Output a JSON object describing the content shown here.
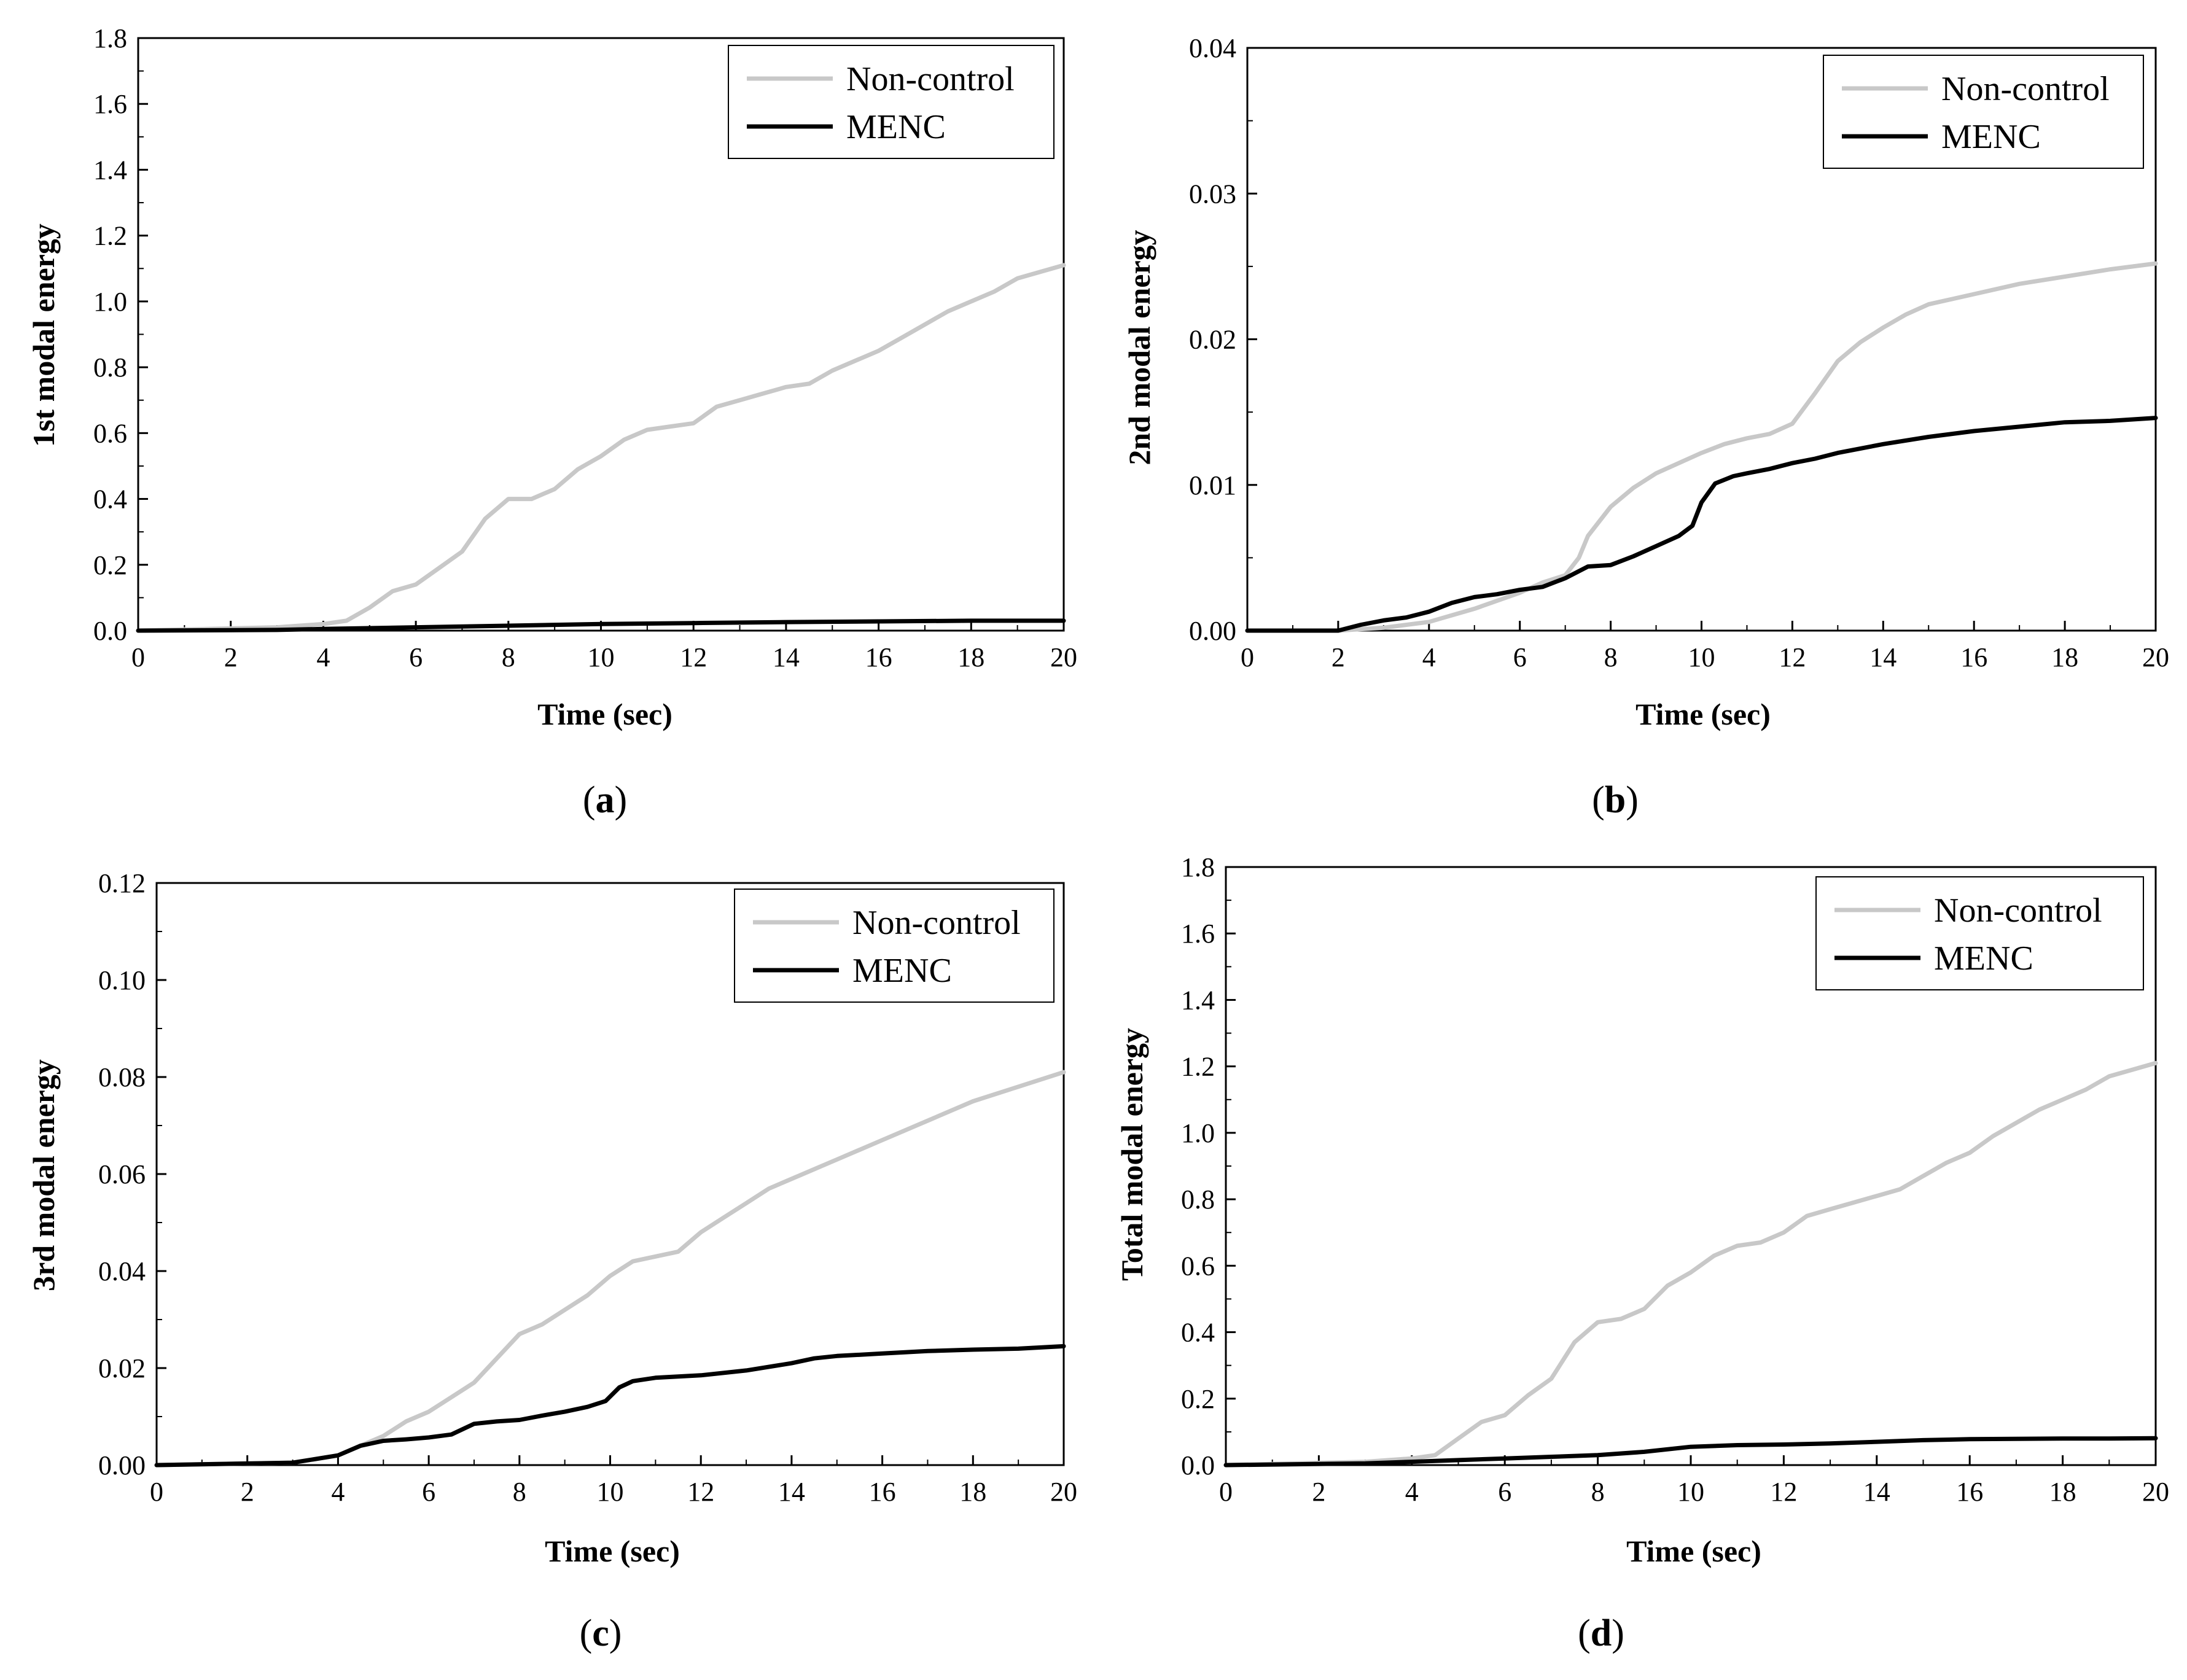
{
  "colors": {
    "noncontrol": "#c8c8c8",
    "menc": "#000000",
    "axis": "#000000",
    "background": "#ffffff"
  },
  "chart_data": [
    {
      "type": "line",
      "caption": "a",
      "xlabel": "Time (sec)",
      "ylabel": "1st modal energy",
      "xlim": [
        0,
        20
      ],
      "ylim": [
        0,
        1.8
      ],
      "xticks": [
        "0",
        "2",
        "4",
        "6",
        "8",
        "10",
        "12",
        "14",
        "16",
        "18",
        "20"
      ],
      "yticks": [
        "0.0",
        "0.2",
        "0.4",
        "0.6",
        "0.8",
        "1.0",
        "1.2",
        "1.4",
        "1.6",
        "1.8"
      ],
      "legend": {
        "position": "top-right",
        "entries": [
          "Non-control",
          "MENC"
        ]
      },
      "series": [
        {
          "name": "Non-control",
          "x": [
            0,
            3,
            4,
            4.5,
            5,
            5.5,
            6,
            6.5,
            7,
            7.5,
            8,
            8.5,
            9,
            9.5,
            10,
            10.5,
            11,
            11.5,
            12,
            12.5,
            13,
            13.5,
            14,
            14.5,
            15,
            15.5,
            16,
            16.5,
            17,
            17.5,
            18,
            18.5,
            19,
            19.5,
            20
          ],
          "values": [
            0,
            0.01,
            0.02,
            0.03,
            0.07,
            0.12,
            0.14,
            0.19,
            0.24,
            0.34,
            0.4,
            0.4,
            0.43,
            0.49,
            0.53,
            0.58,
            0.61,
            0.62,
            0.63,
            0.68,
            0.7,
            0.72,
            0.74,
            0.75,
            0.79,
            0.82,
            0.85,
            0.89,
            0.93,
            0.97,
            1.0,
            1.03,
            1.07,
            1.09,
            1.11
          ]
        },
        {
          "name": "MENC",
          "x": [
            0,
            3,
            4,
            6,
            8,
            10,
            12,
            14,
            16,
            18,
            20
          ],
          "values": [
            0,
            0.002,
            0.005,
            0.01,
            0.015,
            0.02,
            0.023,
            0.026,
            0.028,
            0.03,
            0.03
          ]
        }
      ]
    },
    {
      "type": "line",
      "caption": "b",
      "xlabel": "Time (sec)",
      "ylabel": "2nd modal energy",
      "xlim": [
        0,
        20
      ],
      "ylim": [
        0,
        0.04
      ],
      "xticks": [
        "0",
        "2",
        "4",
        "6",
        "8",
        "10",
        "12",
        "14",
        "16",
        "18",
        "20"
      ],
      "yticks": [
        "0.00",
        "0.01",
        "0.02",
        "0.03",
        "0.04"
      ],
      "legend": {
        "position": "top-right",
        "entries": [
          "Non-control",
          "MENC"
        ]
      },
      "series": [
        {
          "name": "Non-control",
          "x": [
            0,
            2,
            3,
            4,
            5,
            6,
            6.5,
            7,
            7.3,
            7.5,
            8,
            8.5,
            9,
            9.5,
            10,
            10.5,
            11,
            11.5,
            12,
            12.5,
            13,
            13.5,
            14,
            14.5,
            15,
            16,
            17,
            18,
            19,
            20
          ],
          "values": [
            0,
            0,
            0.0002,
            0.0006,
            0.0015,
            0.0026,
            0.0033,
            0.0038,
            0.005,
            0.0065,
            0.0085,
            0.0098,
            0.0108,
            0.0115,
            0.0122,
            0.0128,
            0.0132,
            0.0135,
            0.0142,
            0.0163,
            0.0185,
            0.0198,
            0.0208,
            0.0217,
            0.0224,
            0.0231,
            0.0238,
            0.0243,
            0.0248,
            0.0252
          ]
        },
        {
          "name": "MENC",
          "x": [
            0,
            2,
            2.5,
            3,
            3.5,
            4,
            4.5,
            5,
            5.5,
            6,
            6.5,
            7,
            7.5,
            8,
            8.5,
            9,
            9.5,
            9.8,
            10,
            10.3,
            10.7,
            11,
            11.5,
            12,
            12.5,
            13,
            14,
            15,
            16,
            17,
            18,
            19,
            20
          ],
          "values": [
            0,
            0,
            0.0004,
            0.0007,
            0.0009,
            0.0013,
            0.0019,
            0.0023,
            0.0025,
            0.0028,
            0.003,
            0.0036,
            0.0044,
            0.0045,
            0.0051,
            0.0058,
            0.0065,
            0.0072,
            0.0088,
            0.0101,
            0.0106,
            0.0108,
            0.0111,
            0.0115,
            0.0118,
            0.0122,
            0.0128,
            0.0133,
            0.0137,
            0.014,
            0.0143,
            0.0144,
            0.0146
          ]
        }
      ]
    },
    {
      "type": "line",
      "caption": "c",
      "xlabel": "Time (sec)",
      "ylabel": "3rd modal energy",
      "xlim": [
        0,
        20
      ],
      "ylim": [
        0,
        0.12
      ],
      "xticks": [
        "0",
        "2",
        "4",
        "6",
        "8",
        "10",
        "12",
        "14",
        "16",
        "18",
        "20"
      ],
      "yticks": [
        "0.00",
        "0.02",
        "0.04",
        "0.06",
        "0.08",
        "0.10",
        "0.12"
      ],
      "legend": {
        "position": "top-right",
        "entries": [
          "Non-control",
          "MENC"
        ]
      },
      "series": [
        {
          "name": "Non-control",
          "x": [
            0,
            3,
            4,
            4.5,
            5,
            5.5,
            6,
            6.5,
            7,
            7.5,
            8,
            8.5,
            9,
            9.5,
            10,
            10.5,
            11,
            11.5,
            12,
            12.5,
            13,
            13.5,
            14,
            14.5,
            15,
            16,
            17,
            18,
            19,
            20
          ],
          "values": [
            0,
            0.0005,
            0.002,
            0.004,
            0.006,
            0.009,
            0.011,
            0.014,
            0.017,
            0.022,
            0.027,
            0.029,
            0.032,
            0.035,
            0.039,
            0.042,
            0.043,
            0.044,
            0.048,
            0.051,
            0.054,
            0.057,
            0.059,
            0.061,
            0.063,
            0.067,
            0.071,
            0.075,
            0.078,
            0.081
          ]
        },
        {
          "name": "MENC",
          "x": [
            0,
            3,
            4,
            4.5,
            5,
            5.5,
            6,
            6.5,
            7,
            7.5,
            8,
            8.5,
            9,
            9.5,
            9.9,
            10.2,
            10.5,
            11,
            12,
            13,
            14,
            14.5,
            15,
            16,
            17,
            18,
            19,
            20
          ],
          "values": [
            0,
            0.0005,
            0.002,
            0.004,
            0.005,
            0.0053,
            0.0057,
            0.0063,
            0.0085,
            0.009,
            0.0093,
            0.0102,
            0.011,
            0.012,
            0.0132,
            0.016,
            0.0173,
            0.018,
            0.0185,
            0.0195,
            0.021,
            0.022,
            0.0225,
            0.023,
            0.0235,
            0.0238,
            0.024,
            0.0245
          ]
        }
      ]
    },
    {
      "type": "line",
      "caption": "d",
      "xlabel": "Time (sec)",
      "ylabel": "Total modal energy",
      "xlim": [
        0,
        20
      ],
      "ylim": [
        0,
        1.8
      ],
      "xticks": [
        "0",
        "2",
        "4",
        "6",
        "8",
        "10",
        "12",
        "14",
        "16",
        "18",
        "20"
      ],
      "yticks": [
        "0.0",
        "0.2",
        "0.4",
        "0.6",
        "0.8",
        "1.0",
        "1.2",
        "1.4",
        "1.6",
        "1.8"
      ],
      "legend": {
        "position": "top-right",
        "entries": [
          "Non-control",
          "MENC"
        ]
      },
      "series": [
        {
          "name": "Non-control",
          "x": [
            0,
            3,
            4,
            4.5,
            5,
            5.5,
            6,
            6.5,
            7,
            7.5,
            8,
            8.5,
            9,
            9.5,
            10,
            10.5,
            11,
            11.5,
            12,
            12.5,
            13,
            13.5,
            14,
            14.5,
            15,
            15.5,
            16,
            16.5,
            17,
            17.5,
            18,
            18.5,
            19,
            19.5,
            20
          ],
          "values": [
            0,
            0.01,
            0.02,
            0.03,
            0.08,
            0.13,
            0.15,
            0.21,
            0.26,
            0.37,
            0.43,
            0.44,
            0.47,
            0.54,
            0.58,
            0.63,
            0.66,
            0.67,
            0.7,
            0.75,
            0.77,
            0.79,
            0.81,
            0.83,
            0.87,
            0.91,
            0.94,
            0.99,
            1.03,
            1.07,
            1.1,
            1.13,
            1.17,
            1.19,
            1.21
          ]
        },
        {
          "name": "MENC",
          "x": [
            0,
            3,
            4,
            5,
            6,
            7,
            8,
            9,
            10,
            11,
            12,
            13,
            14,
            15,
            16,
            17,
            18,
            19,
            20
          ],
          "values": [
            0,
            0.005,
            0.01,
            0.015,
            0.02,
            0.025,
            0.03,
            0.04,
            0.055,
            0.06,
            0.062,
            0.065,
            0.07,
            0.075,
            0.078,
            0.079,
            0.08,
            0.08,
            0.081
          ]
        }
      ]
    }
  ]
}
